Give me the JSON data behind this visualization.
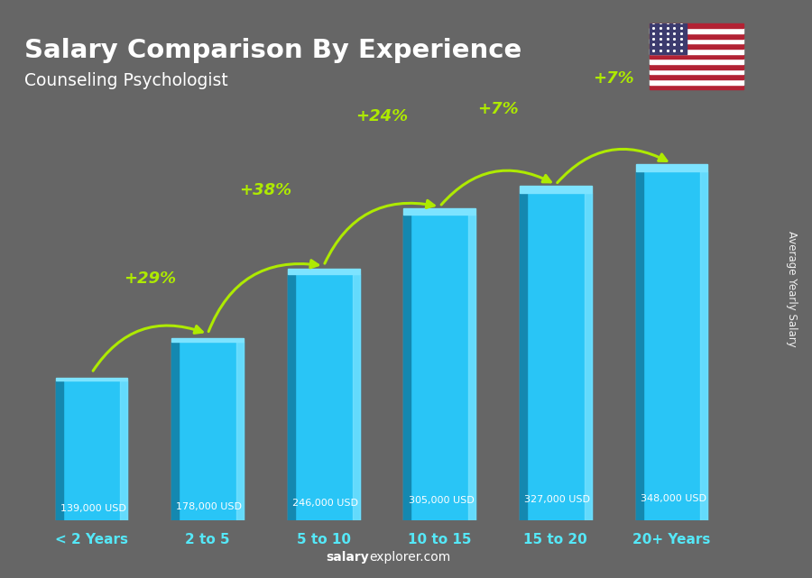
{
  "title_main": "Salary Comparison By Experience",
  "title_sub": "Counseling Psychologist",
  "categories": [
    "< 2 Years",
    "2 to 5",
    "5 to 10",
    "10 to 15",
    "15 to 20",
    "20+ Years"
  ],
  "values": [
    139000,
    178000,
    246000,
    305000,
    327000,
    348000
  ],
  "value_labels": [
    "139,000 USD",
    "178,000 USD",
    "246,000 USD",
    "305,000 USD",
    "327,000 USD",
    "348,000 USD"
  ],
  "pct_labels": [
    "+29%",
    "+38%",
    "+24%",
    "+7%",
    "+7%"
  ],
  "bar_color_main": "#29C5F6",
  "bar_color_dark": "#1488B0",
  "bar_color_light": "#7DE3FF",
  "background_color": "#666666",
  "text_color_white": "#ffffff",
  "text_color_green": "#AEEA00",
  "text_color_cyan": "#55E8F8",
  "ylabel": "Average Yearly Salary",
  "watermark_bold": "salary",
  "watermark_normal": "explorer.com",
  "ylim": [
    0,
    450000
  ],
  "arrow_rad": 0.35,
  "pct_offsets_y": [
    55000,
    75000,
    90000,
    75000,
    85000
  ],
  "pct_offsets_x": [
    0,
    0,
    0,
    0,
    0
  ]
}
